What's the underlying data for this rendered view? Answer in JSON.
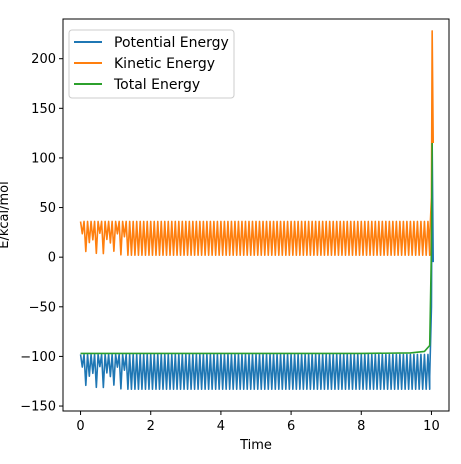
{
  "chart_data": {
    "type": "line",
    "xlabel": "Time",
    "ylabel": "E/kcal/mol",
    "xlim": [
      -0.5,
      10.5
    ],
    "ylim": [
      -155,
      240
    ],
    "xticks": [
      0,
      2,
      4,
      6,
      8,
      10
    ],
    "yticks": [
      -150,
      -100,
      -50,
      0,
      50,
      100,
      150,
      200
    ],
    "ytick_labels": [
      "−150",
      "−100",
      "−50",
      "0",
      "50",
      "100",
      "150",
      "200"
    ],
    "grid": false,
    "legend_position": "top-left",
    "series": [
      {
        "name": "Potential Energy",
        "color": "#1f77b4",
        "pattern": {
          "t_start": 0.0,
          "t_end": 9.95,
          "period": 0.1,
          "high": -98,
          "low": -133,
          "irregular_until": 1.3
        },
        "tail": {
          "x": [
            9.95,
            10.0,
            10.02,
            10.05
          ],
          "y": [
            -120,
            -50,
            115,
            -5
          ]
        }
      },
      {
        "name": "Kinetic Energy",
        "color": "#ff7f0e",
        "pattern": {
          "t_start": 0.0,
          "t_end": 9.95,
          "period": 0.1,
          "high": 36,
          "low": 2,
          "irregular_until": 1.3
        },
        "tail": {
          "x": [
            9.95,
            10.0,
            10.02,
            10.05
          ],
          "y": [
            20,
            60,
            228,
            115
          ]
        }
      },
      {
        "name": "Total Energy",
        "color": "#2ca02c",
        "points": {
          "x": [
            0.0,
            2.0,
            4.0,
            6.0,
            8.0,
            9.4,
            9.8,
            9.95,
            10.0,
            10.02
          ],
          "y": [
            -97,
            -97,
            -97,
            -97,
            -97,
            -96.5,
            -95,
            -89,
            10,
            115
          ]
        }
      }
    ]
  }
}
